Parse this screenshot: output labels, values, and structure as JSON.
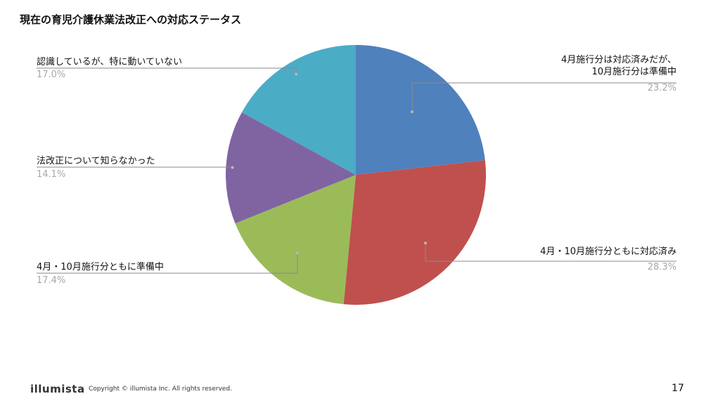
{
  "title": "現在の育児介護休業法改正への対応ステータス",
  "chart_data": {
    "type": "pie",
    "start": "12 o'clock",
    "direction": "clockwise",
    "slices": [
      {
        "label": "4月施行分は対応済みだが、\n10月施行分は準備中",
        "label_lines": [
          "4月施行分は対応済みだが、",
          "10月施行分は準備中"
        ],
        "value": 23.2,
        "value_label": "23.2%",
        "color": "#4f81bd"
      },
      {
        "label": "4月・10月施行分ともに対応済み",
        "label_lines": [
          "4月・10月施行分ともに対応済み"
        ],
        "value": 28.3,
        "value_label": "28.3%",
        "color": "#c0504d"
      },
      {
        "label": "4月・10月施行分ともに準備中",
        "label_lines": [
          "4月・10月施行分ともに準備中"
        ],
        "value": 17.4,
        "value_label": "17.4%",
        "color": "#9bbb59"
      },
      {
        "label": "法改正について知らなかった",
        "label_lines": [
          "法改正について知らなかった"
        ],
        "value": 14.1,
        "value_label": "14.1%",
        "color": "#8064a2"
      },
      {
        "label": "認識しているが、特に動いていない",
        "label_lines": [
          "認識しているが、特に動いていない"
        ],
        "value": 17.0,
        "value_label": "17.0%",
        "color": "#4bacc6"
      }
    ]
  },
  "footer": {
    "logo": "illumista",
    "copyright": "Copyright © illumista Inc. All rights reserved.",
    "page_number": "17"
  }
}
